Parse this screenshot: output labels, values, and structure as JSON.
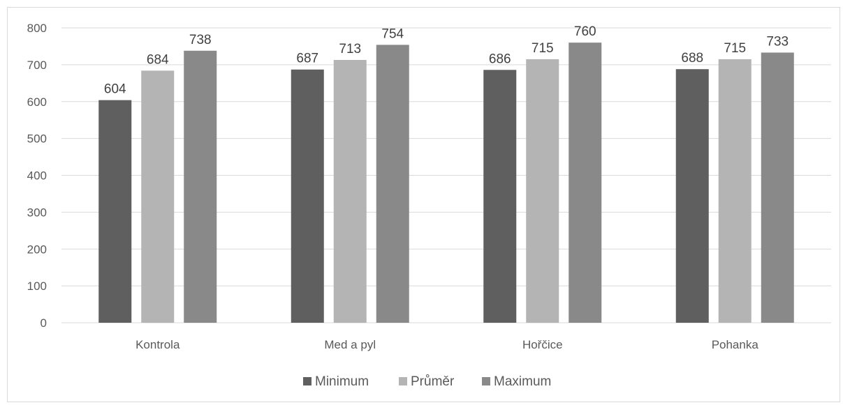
{
  "chart_data": {
    "type": "bar",
    "title": "",
    "xlabel": "",
    "ylabel": "",
    "categories": [
      "Kontrola",
      "Med a pyl",
      "Hořčice",
      "Pohanka"
    ],
    "series": [
      {
        "name": "Minimum",
        "values": [
          604,
          687,
          686,
          688
        ],
        "color": "#5f5f5f"
      },
      {
        "name": "Průměr",
        "values": [
          684,
          713,
          715,
          715
        ],
        "color": "#b4b4b4"
      },
      {
        "name": "Maximum",
        "values": [
          738,
          754,
          760,
          733
        ],
        "color": "#898989"
      }
    ],
    "ylim": [
      0,
      800
    ],
    "yticks": [
      "0",
      "100",
      "200",
      "300",
      "400",
      "500",
      "600",
      "700",
      "800"
    ],
    "grid": true,
    "legend_position": "bottom",
    "gridline_color": "#d9d9d9"
  }
}
